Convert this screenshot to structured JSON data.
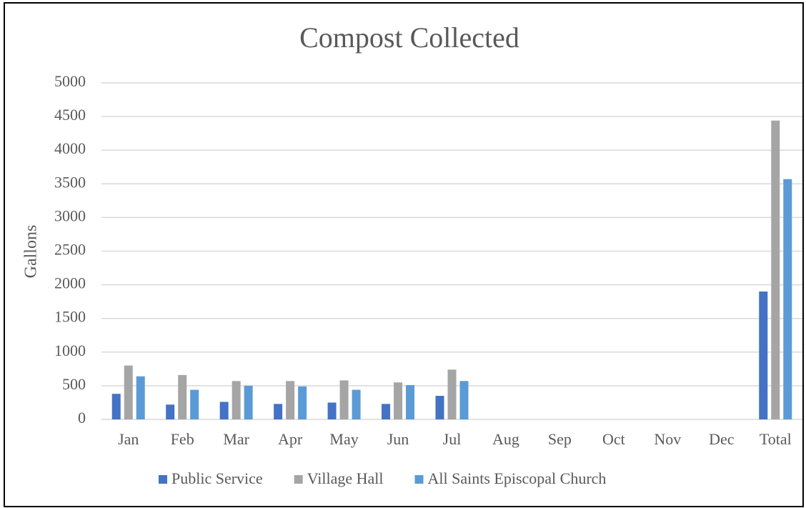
{
  "chart_data": {
    "type": "bar",
    "title": "Compost Collected",
    "y_label": "Gallons",
    "categories": [
      "Jan",
      "Feb",
      "Mar",
      "Apr",
      "May",
      "Jun",
      "Jul",
      "Aug",
      "Sep",
      "Oct",
      "Nov",
      "Dec",
      "Total"
    ],
    "series": [
      {
        "name": "Public Service",
        "color": "#4472c4",
        "values": [
          380,
          220,
          260,
          230,
          250,
          230,
          350,
          null,
          null,
          null,
          null,
          null,
          1900
        ]
      },
      {
        "name": "Village Hall",
        "color": "#a5a5a5",
        "values": [
          800,
          660,
          570,
          570,
          580,
          550,
          740,
          null,
          null,
          null,
          null,
          null,
          4440
        ]
      },
      {
        "name": "All Saints Episcopal Church",
        "color": "#5b9bd5",
        "values": [
          640,
          440,
          500,
          490,
          440,
          510,
          570,
          null,
          null,
          null,
          null,
          null,
          3570
        ]
      }
    ],
    "ylim": [
      0,
      5000
    ],
    "yticks": [
      0,
      500,
      1000,
      1500,
      2000,
      2500,
      3000,
      3500,
      4000,
      4500,
      5000
    ],
    "grid": true,
    "legend": "bottom"
  }
}
